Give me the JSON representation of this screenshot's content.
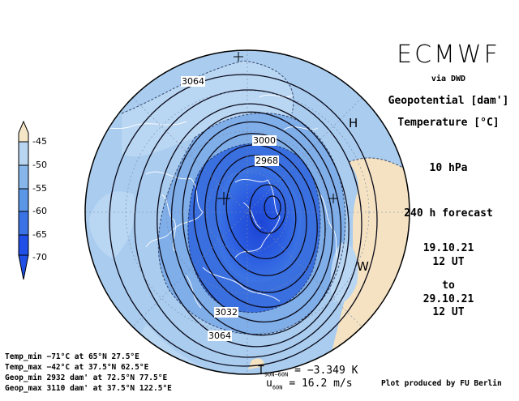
{
  "header": {
    "model": "ECMWF",
    "source": "via DWD",
    "field_1": "Geopotential [dam']",
    "field_2": "Temperature [°C]",
    "level": "10 hPa",
    "forecast": "240 h forecast",
    "init_date": "19.10.21",
    "init_time": "12 UT",
    "to_label": "to",
    "valid_date": "29.10.21",
    "valid_time": "12 UT"
  },
  "colorbar": {
    "ticks": [
      "-45",
      "-50",
      "-55",
      "-60",
      "-65",
      "-70"
    ],
    "colors": [
      "#f5e6c8",
      "#b8d6f2",
      "#86b6ea",
      "#5c96e6",
      "#3a73e6",
      "#1f4fe6"
    ]
  },
  "map": {
    "contour_labels": [
      "3064",
      "3000",
      "2968",
      "3032",
      "3064"
    ],
    "pressure_labels": [
      "H",
      "W"
    ],
    "colors": {
      "ocean_light": "#a9ccef",
      "mid": "#7faee8",
      "deep": "#3a6fe0",
      "core": "#1f4cd8",
      "warm": "#f4e2c2"
    }
  },
  "stats": {
    "temp_min": "Temp_min −71°C at 65°N 27.5°E",
    "temp_max": "Temp_max −42°C at 37.5°N 62.5°E",
    "geop_min": "Geop_min 2932 dam' at 72.5°N 77.5°E",
    "geop_max": "Geop_max 3110 dam' at 37.5°N 122.5°E"
  },
  "metrics": {
    "t_symbol": "T",
    "t_sub": "90N−60N",
    "t_value": "= −3.349 K",
    "u_symbol": "u",
    "u_sub": "60N",
    "u_value": "= 16.2 m/s"
  },
  "credit": "Plot produced by FU Berlin"
}
